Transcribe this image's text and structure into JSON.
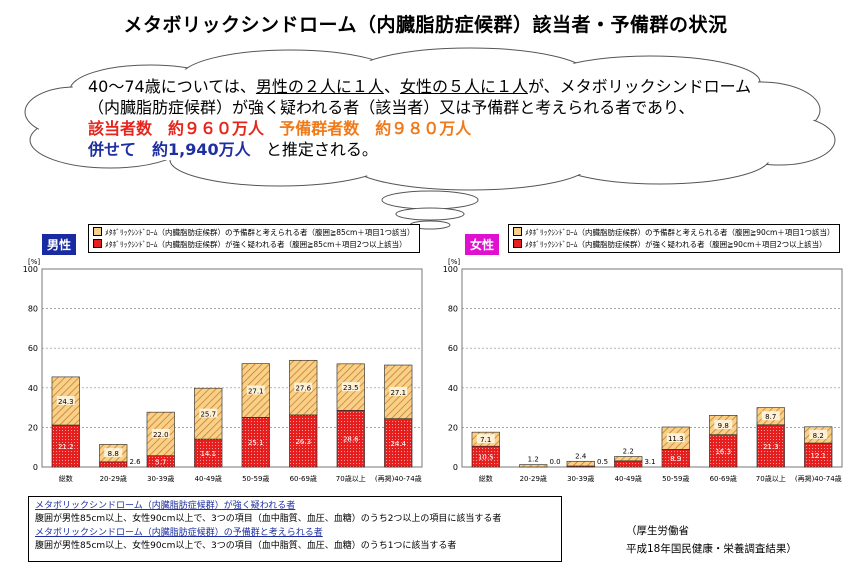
{
  "title": "メタボリックシンドローム（内臓脂肪症候群）該当者・予備群の状況",
  "summary": {
    "line1_pre": "40～74歳については、",
    "line1_male": "男性の２人に１人",
    "line1_mid": "、",
    "line1_female": "女性の５人に１人",
    "line1_post": "が、メタボリックシンドローム",
    "line2": "（内臓脂肪症候群）が強く疑われる者（該当者）又は予備群と考えられる者であり、",
    "line3_a": "該当者数　約９６０万人",
    "line3_b": "予備群者数　約９８０万人",
    "line4_a": "併せて　約1,940万人",
    "line4_b": "と推定される。"
  },
  "colors": {
    "suspected": "#e61e1e",
    "reserve": "#f7d089",
    "reserve_stripe": "#c8741a",
    "male_label": "#1a2aa0",
    "female_label": "#e010d0"
  },
  "chart_data": [
    {
      "type": "bar",
      "title": "男性",
      "ylabel": "[%]",
      "ylim": [
        0,
        100
      ],
      "yticks": [
        "0",
        "20",
        "40",
        "60",
        "80",
        "100"
      ],
      "categories": [
        "総数",
        "20-29歳",
        "30-39歳",
        "40-49歳",
        "50-59歳",
        "60-69歳",
        "70歳以上",
        "(再掲)40-74歳"
      ],
      "series": [
        {
          "name": "メタボリックシンドローム（内臓脂肪症候群）が強く疑われる者（腹囲≧85cm＋項目２つ以上該当）",
          "values": [
            21.2,
            2.6,
            5.7,
            14.1,
            25.1,
            26.3,
            28.6,
            24.4
          ]
        },
        {
          "name": "メタボリックシンドローム（内臓脂肪症候群）の予備群と考えられる者（腹囲≧85cm＋項目１つ該当）",
          "values": [
            24.3,
            8.8,
            22.0,
            25.7,
            27.1,
            27.6,
            23.5,
            27.1
          ]
        }
      ]
    },
    {
      "type": "bar",
      "title": "女性",
      "ylabel": "[%]",
      "ylim": [
        0,
        100
      ],
      "yticks": [
        "0",
        "20",
        "40",
        "60",
        "80",
        "100"
      ],
      "categories": [
        "総数",
        "20-29歳",
        "30-39歳",
        "40-49歳",
        "50-59歳",
        "60-69歳",
        "70歳以上",
        "(再掲)40-74歳"
      ],
      "series": [
        {
          "name": "メタボリックシンドローム（内臓脂肪症候群）が強く疑われる者（腹囲≧90cm＋項目２つ以上該当）",
          "values": [
            10.5,
            0.0,
            0.5,
            3.1,
            8.9,
            16.3,
            21.3,
            12.1
          ]
        },
        {
          "name": "メタボリックシンドローム（内臓脂肪症候群）の予備群と考えられる者（腹囲≧90cm＋項目１つ該当）",
          "values": [
            7.1,
            1.2,
            2.4,
            2.2,
            11.3,
            9.8,
            8.7,
            8.2
          ]
        }
      ]
    }
  ],
  "male": {
    "label": "男性",
    "legend_reserve": "ﾒﾀﾎﾞﾘｯｸｼﾝﾄﾞﾛｰﾑ（内臓脂肪症候群）の予備群と考えられる者（腹囲≧85cm＋項目1つ該当）",
    "legend_suspected": "ﾒﾀﾎﾞﾘｯｸｼﾝﾄﾞﾛｰﾑ（内臓脂肪症候群）が強く疑われる者（腹囲≧85cm＋項目2つ以上該当）"
  },
  "female": {
    "label": "女性",
    "legend_reserve": "ﾒﾀﾎﾞﾘｯｸｼﾝﾄﾞﾛｰﾑ（内臓脂肪症候群）の予備群と考えられる者（腹囲≧90cm＋項目1つ該当）",
    "legend_suspected": "ﾒﾀﾎﾞﾘｯｸｼﾝﾄﾞﾛｰﾑ（内臓脂肪症候群）が強く疑われる者（腹囲≧90cm＋項目2つ以上該当）"
  },
  "notes": {
    "h1": "メタボリックシンドローム（内臓脂肪症候群）が強く疑われる者",
    "d1": "腹囲が男性85cm以上、女性90cm以上で、3つの項目（血中脂質、血圧、血糖）のうち2つ以上の項目に該当する者",
    "h2": "メタボリックシンドローム（内臓脂肪症候群）の予備群と考えられる者",
    "d2": "腹囲が男性85cm以上、女性90cm以上で、3つの項目（血中脂質、血圧、血糖）のうち1つに該当する者"
  },
  "source": {
    "line1": "（厚生労働省",
    "line2": "平成18年国民健康・栄養調査結果）"
  }
}
